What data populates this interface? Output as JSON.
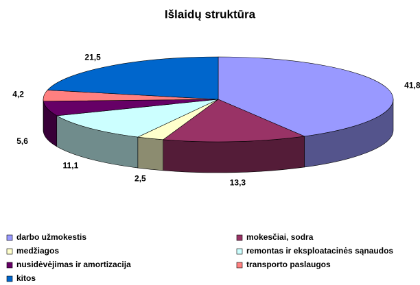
{
  "chart_data": {
    "type": "pie3d",
    "title": "Išlaidų struktūra",
    "categories": [
      "darbo užmokestis",
      "mokesčiai, sodra",
      "medžiagos",
      "remontas ir eksploatacinės sąnaudos",
      "nusidėvėjimas ir amortizacija",
      "transporto paslaugos",
      "kitos"
    ],
    "values": [
      41.8,
      13.3,
      2.5,
      11.1,
      5.6,
      4.2,
      21.5
    ],
    "value_labels": [
      "41,8",
      "13,3",
      "2,5",
      "11,1",
      "5,6",
      "4,2",
      "21,5"
    ],
    "colors": [
      "#9999ff",
      "#993366",
      "#ffffcc",
      "#ccffff",
      "#660066",
      "#ff8080",
      "#0066cc"
    ],
    "legend": "bottom"
  }
}
